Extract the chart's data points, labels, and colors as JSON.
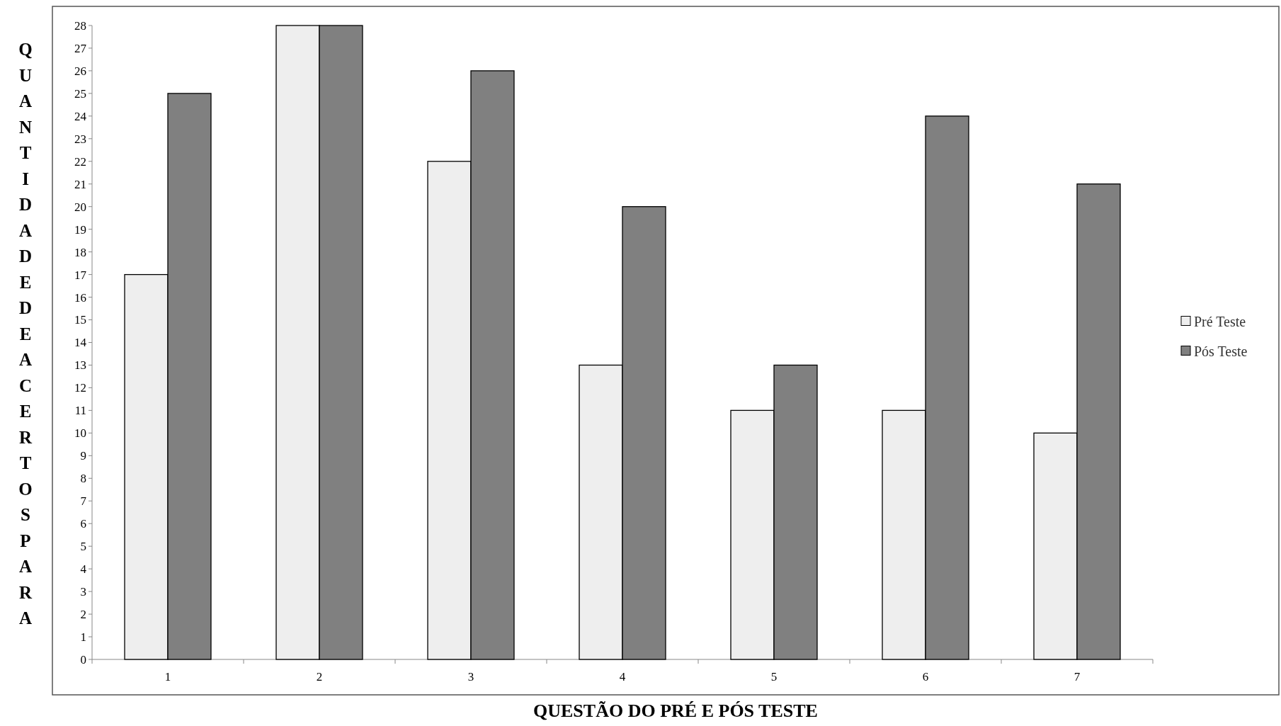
{
  "chart_data": {
    "type": "bar",
    "xlabel": "QUESTÃO DO PRÉ E PÓS TESTE",
    "ylabel": "QUANTIDADEDEACERTOSPARA",
    "categories": [
      "1",
      "2",
      "3",
      "4",
      "5",
      "6",
      "7"
    ],
    "series": [
      {
        "name": "Pré Teste",
        "color": "#eeeeee",
        "values": [
          17,
          28,
          22,
          13,
          11,
          11,
          10
        ]
      },
      {
        "name": "Pós Teste",
        "color": "#808080",
        "values": [
          25,
          28,
          26,
          20,
          13,
          24,
          21
        ]
      }
    ],
    "ylim": [
      0,
      28
    ],
    "yticks": [
      0,
      1,
      2,
      3,
      4,
      5,
      6,
      7,
      8,
      9,
      10,
      11,
      12,
      13,
      14,
      15,
      16,
      17,
      18,
      19,
      20,
      21,
      22,
      23,
      24,
      25,
      26,
      27,
      28
    ],
    "grid": false,
    "legend": "right"
  }
}
